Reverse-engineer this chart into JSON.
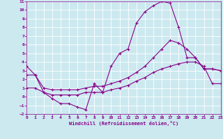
{
  "xlabel": "Windchill (Refroidissement éolien,°C)",
  "xlim": [
    0,
    23
  ],
  "ylim": [
    -2,
    11
  ],
  "yticks": [
    -2,
    -1,
    0,
    1,
    2,
    3,
    4,
    5,
    6,
    7,
    8,
    9,
    10,
    11
  ],
  "xticks": [
    0,
    1,
    2,
    3,
    4,
    5,
    6,
    7,
    8,
    9,
    10,
    11,
    12,
    13,
    14,
    15,
    16,
    17,
    18,
    19,
    20,
    21,
    22,
    23
  ],
  "bg_color": "#cce9f0",
  "line_color": "#880088",
  "grid_color": "#ffffff",
  "lines": [
    {
      "x": [
        0,
        1,
        2,
        3,
        4,
        5,
        6,
        7,
        8,
        9,
        10,
        11,
        12,
        13,
        14,
        15,
        16,
        17,
        18,
        19,
        20,
        21,
        22,
        23
      ],
      "y": [
        3.5,
        2.5,
        0.5,
        -0.2,
        -0.8,
        -0.8,
        -1.2,
        -1.5,
        1.5,
        0.5,
        3.5,
        5.0,
        5.5,
        8.5,
        9.8,
        10.5,
        11.0,
        10.8,
        8.0,
        4.5,
        4.5,
        3.2,
        3.2,
        3.0
      ]
    },
    {
      "x": [
        0,
        1,
        2,
        3,
        4,
        5,
        6,
        7,
        8,
        9,
        10,
        11,
        12,
        13,
        14,
        15,
        16,
        17,
        18,
        19,
        20,
        21,
        22,
        23
      ],
      "y": [
        2.5,
        2.5,
        1.0,
        0.8,
        0.8,
        0.8,
        0.8,
        1.0,
        1.2,
        1.2,
        1.5,
        1.8,
        2.2,
        2.8,
        3.5,
        4.5,
        5.5,
        6.5,
        6.2,
        5.5,
        4.5,
        3.2,
        3.2,
        3.0
      ]
    },
    {
      "x": [
        0,
        1,
        2,
        3,
        4,
        5,
        6,
        7,
        8,
        9,
        10,
        11,
        12,
        13,
        14,
        15,
        16,
        17,
        18,
        19,
        20,
        21,
        22,
        23
      ],
      "y": [
        1.0,
        1.0,
        0.5,
        0.2,
        0.2,
        0.2,
        0.2,
        0.5,
        0.5,
        0.5,
        0.8,
        1.0,
        1.3,
        1.8,
        2.2,
        2.8,
        3.2,
        3.5,
        3.8,
        4.0,
        4.0,
        3.5,
        1.5,
        1.5
      ]
    }
  ]
}
